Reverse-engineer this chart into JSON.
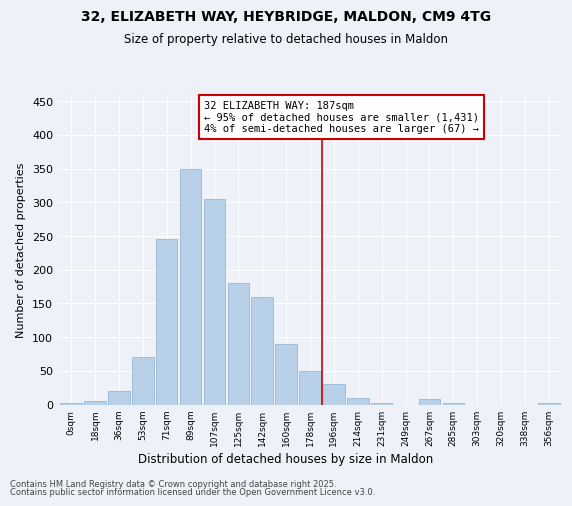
{
  "title_line1": "32, ELIZABETH WAY, HEYBRIDGE, MALDON, CM9 4TG",
  "title_line2": "Size of property relative to detached houses in Maldon",
  "xlabel": "Distribution of detached houses by size in Maldon",
  "ylabel": "Number of detached properties",
  "categories": [
    "0sqm",
    "18sqm",
    "36sqm",
    "53sqm",
    "71sqm",
    "89sqm",
    "107sqm",
    "125sqm",
    "142sqm",
    "160sqm",
    "178sqm",
    "196sqm",
    "214sqm",
    "231sqm",
    "249sqm",
    "267sqm",
    "285sqm",
    "303sqm",
    "320sqm",
    "338sqm",
    "356sqm"
  ],
  "values": [
    2,
    5,
    20,
    70,
    245,
    350,
    305,
    180,
    160,
    90,
    50,
    30,
    10,
    2,
    0,
    8,
    2,
    0,
    0,
    0,
    2
  ],
  "bar_color": "#b8d0e8",
  "bar_edge_color": "#8ab0d0",
  "vline_color": "#CC0000",
  "vline_position": 10.5,
  "annotation_title": "32 ELIZABETH WAY: 187sqm",
  "annotation_line1": "← 95% of detached houses are smaller (1,431)",
  "annotation_line2": "4% of semi-detached houses are larger (67) →",
  "annotation_box_color": "#CC0000",
  "ylim": [
    0,
    460
  ],
  "yticks": [
    0,
    50,
    100,
    150,
    200,
    250,
    300,
    350,
    400,
    450
  ],
  "footnote_line1": "Contains HM Land Registry data © Crown copyright and database right 2025.",
  "footnote_line2": "Contains public sector information licensed under the Open Government Licence v3.0.",
  "background_color": "#eef2f8"
}
